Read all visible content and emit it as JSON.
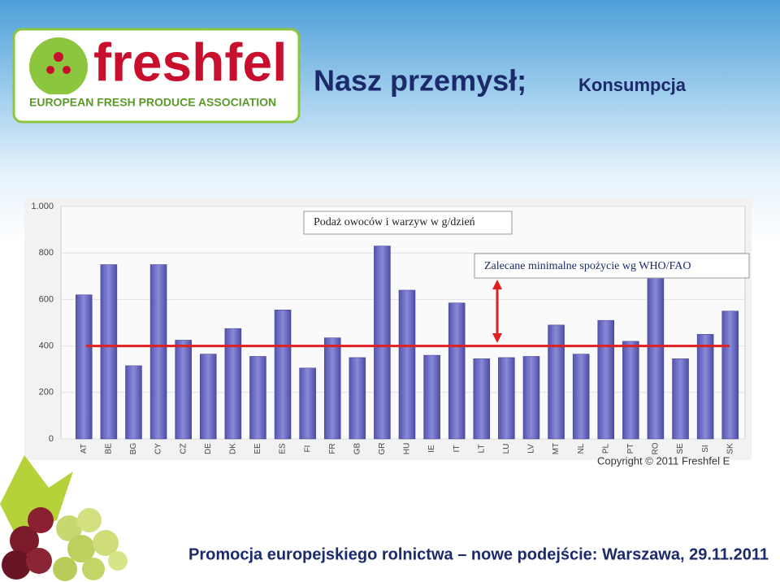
{
  "logo": {
    "name": "freshfel",
    "tagline": "EUROPEAN FRESH PRODUCE ASSOCIATION"
  },
  "header": {
    "title": "Nasz przemysł;",
    "subtitle": "Konsumpcja"
  },
  "footer": "Promocja europejskiego rolnictwa – nowe podejście: Warszawa, 29.11.2011",
  "chart_data": {
    "type": "bar",
    "categories": [
      "AT",
      "BE",
      "BG",
      "CY",
      "CZ",
      "DE",
      "DK",
      "EE",
      "ES",
      "FI",
      "FR",
      "GB",
      "GR",
      "HU",
      "IE",
      "IT",
      "LT",
      "LU",
      "LV",
      "MT",
      "NL",
      "PL",
      "PT",
      "RO",
      "SE",
      "SI",
      "SK"
    ],
    "values": [
      620,
      750,
      315,
      750,
      425,
      365,
      475,
      355,
      555,
      305,
      435,
      350,
      830,
      640,
      360,
      585,
      345,
      350,
      355,
      490,
      365,
      510,
      420,
      720,
      345,
      450,
      550
    ],
    "color": "#6464c0",
    "ylim": [
      0,
      1000
    ],
    "yticks": [
      0,
      200,
      400,
      600,
      800,
      {
        "value": 1000,
        "label": "1.000"
      }
    ],
    "grid": true,
    "reference_value": 400,
    "reference_color": "#e02020",
    "annotations": [
      "Podaż owoców i warzyw w g/dzień",
      "Zalecane minimalne spożycie wg WHO/FAO"
    ],
    "copyright": "Copyright © 2011 Freshfel E"
  }
}
